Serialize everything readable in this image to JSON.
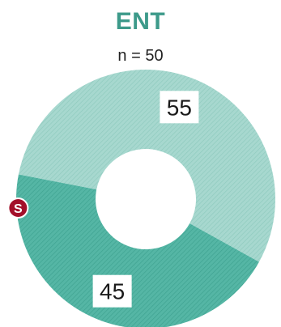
{
  "chart_data": {
    "type": "pie",
    "donut": true,
    "title": "ENT",
    "subtitle": "n = 50",
    "slices": [
      {
        "value": 55,
        "label": "55",
        "color": "#9fd4ca",
        "pattern": "hatched"
      },
      {
        "value": 45,
        "label": "45",
        "color": "#4fb3a2",
        "pattern": "hatched",
        "marker": "S"
      }
    ],
    "colors": {
      "title": "#3d9a8a",
      "marker_fill": "#a3102a"
    }
  }
}
